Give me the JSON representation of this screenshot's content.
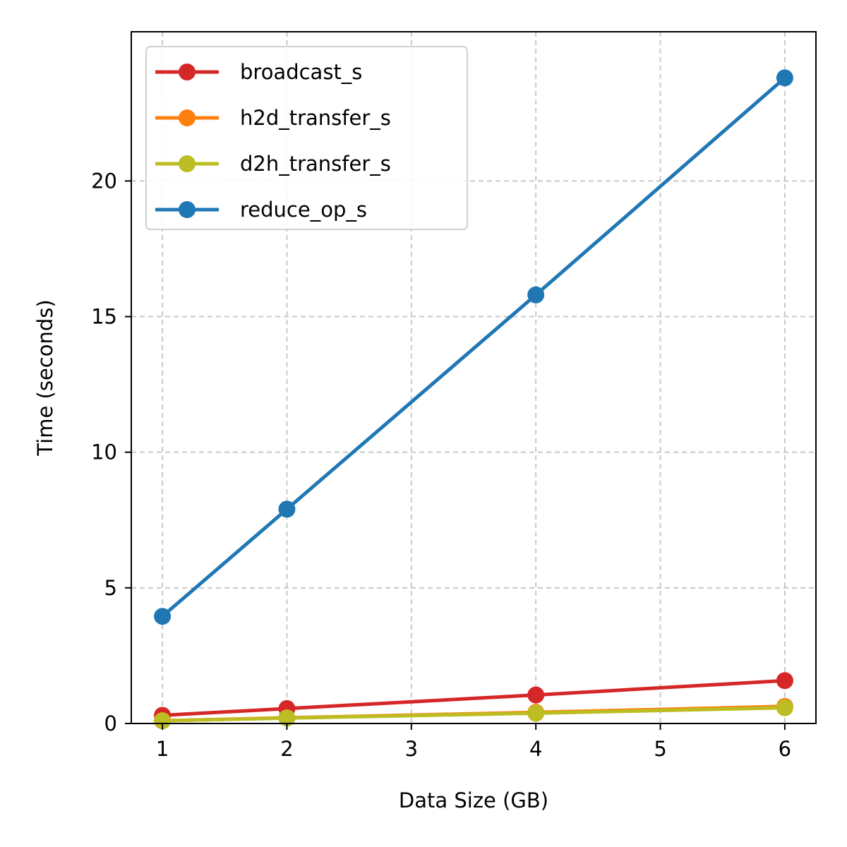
{
  "chart_data": {
    "type": "line",
    "title": "",
    "xlabel": "Data Size (GB)",
    "ylabel": "Time (seconds)",
    "x": [
      1,
      2,
      4,
      6
    ],
    "xlim": [
      0.75,
      6.25
    ],
    "ylim": [
      0,
      25.5
    ],
    "xticks": [
      1,
      2,
      3,
      4,
      5,
      6
    ],
    "yticks": [
      0,
      5,
      10,
      15,
      20
    ],
    "grid": true,
    "legend_position": "top-left",
    "series": [
      {
        "name": "broadcast_s",
        "color": "#d62728",
        "values": [
          0.3,
          0.55,
          1.05,
          1.58
        ]
      },
      {
        "name": "h2d_transfer_s",
        "color": "#ff7f0e",
        "values": [
          0.1,
          0.21,
          0.41,
          0.63
        ]
      },
      {
        "name": "d2h_transfer_s",
        "color": "#bcbd22",
        "values": [
          0.1,
          0.2,
          0.38,
          0.58
        ]
      },
      {
        "name": "reduce_op_s",
        "color": "#1f77b4",
        "values": [
          3.95,
          7.9,
          15.8,
          23.8
        ]
      }
    ]
  }
}
